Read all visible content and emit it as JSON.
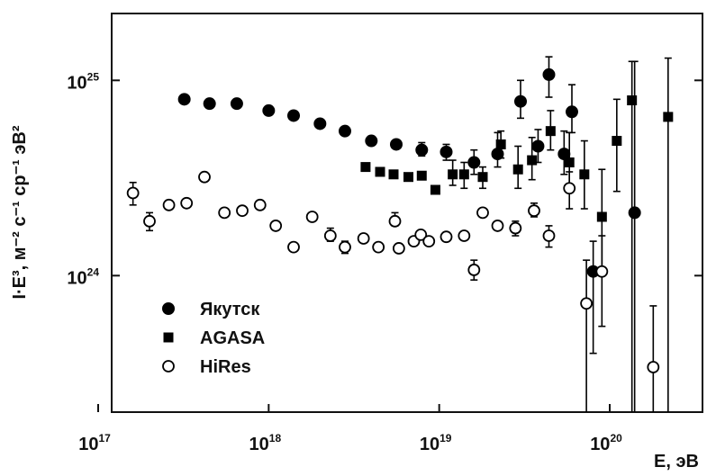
{
  "chart_data": {
    "type": "scatter",
    "xlabel": "E, эВ",
    "ylabel": "I·E³, м⁻² с⁻¹ ср⁻¹ эВ²",
    "x_scale": "log",
    "y_scale": "log",
    "xlim": [
      1.2e+17,
      3.5e+20
    ],
    "ylim": [
      2e+23,
      2.2e+25
    ],
    "x_ticks": [
      {
        "value": 1e+17,
        "base": "10",
        "exp": "17"
      },
      {
        "value": 1e+18,
        "base": "10",
        "exp": "18"
      },
      {
        "value": 1e+19,
        "base": "10",
        "exp": "19"
      },
      {
        "value": 1e+20,
        "base": "10",
        "exp": "20"
      }
    ],
    "y_ticks": [
      {
        "value": 1e+24,
        "base": "10",
        "exp": "24"
      },
      {
        "value": 1e+25,
        "base": "10",
        "exp": "25"
      }
    ],
    "legend_position": "bottom-left",
    "series": [
      {
        "name": "Якутск",
        "marker": "filled-circle",
        "color": "#000000",
        "points": [
          {
            "x": 3.2e+17,
            "y": 8e+24
          },
          {
            "x": 4.5e+17,
            "y": 7.6e+24
          },
          {
            "x": 6.5e+17,
            "y": 7.6e+24
          },
          {
            "x": 1e+18,
            "y": 7e+24
          },
          {
            "x": 1.4e+18,
            "y": 6.6e+24
          },
          {
            "x": 2e+18,
            "y": 6e+24
          },
          {
            "x": 2.8e+18,
            "y": 5.5e+24
          },
          {
            "x": 4e+18,
            "y": 4.9e+24
          },
          {
            "x": 5.6e+18,
            "y": 4.7e+24
          },
          {
            "x": 7.9e+18,
            "y": 4.4e+24,
            "yerr": [
              4.1e+24,
              4.8e+24
            ]
          },
          {
            "x": 1.1e+19,
            "y": 4.3e+24,
            "yerr": [
              3.9e+24,
              4.7e+24
            ]
          },
          {
            "x": 1.6e+19,
            "y": 3.8e+24,
            "yerr": [
              3.3e+24,
              4.4e+24
            ]
          },
          {
            "x": 2.2e+19,
            "y": 4.2e+24,
            "yerr": [
              3.6e+24,
              5.4e+24
            ]
          },
          {
            "x": 3e+19,
            "y": 7.8e+24,
            "yerr": [
              6.4e+24,
              1e+25
            ]
          },
          {
            "x": 3.8e+19,
            "y": 4.6e+24,
            "yerr": [
              3.8e+24,
              5.6e+24
            ]
          },
          {
            "x": 4.4e+19,
            "y": 1.07e+25,
            "yerr": [
              8.2e+24,
              1.32e+25
            ]
          },
          {
            "x": 5.4e+19,
            "y": 4.2e+24,
            "yerr": [
              3.3e+24,
              5.5e+24
            ]
          },
          {
            "x": 6e+19,
            "y": 6.9e+24,
            "yerr": [
              5.4e+24,
              9.5e+24
            ]
          },
          {
            "x": 8e+19,
            "y": 1.05e+24,
            "yerr": [
              4e+23,
              1.5e+24
            ]
          },
          {
            "x": 1.4e+20,
            "y": 2.1e+24,
            "yerr": [
              2e+23,
              1.25e+25
            ]
          }
        ]
      },
      {
        "name": "AGASA",
        "marker": "filled-square",
        "color": "#000000",
        "points": [
          {
            "x": 3.7e+18,
            "y": 3.6e+24
          },
          {
            "x": 4.5e+18,
            "y": 3.4e+24
          },
          {
            "x": 5.4e+18,
            "y": 3.3e+24
          },
          {
            "x": 6.6e+18,
            "y": 3.2e+24
          },
          {
            "x": 7.9e+18,
            "y": 3.25e+24
          },
          {
            "x": 9.5e+18,
            "y": 2.75e+24
          },
          {
            "x": 1.2e+19,
            "y": 3.3e+24,
            "yerr": [
              2.9e+24,
              3.9e+24
            ]
          },
          {
            "x": 1.4e+19,
            "y": 3.3e+24,
            "yerr": [
              2.8e+24,
              3.8e+24
            ]
          },
          {
            "x": 1.8e+19,
            "y": 3.2e+24,
            "yerr": [
              2.8e+24,
              3.6e+24
            ]
          },
          {
            "x": 2.3e+19,
            "y": 4.7e+24,
            "yerr": [
              4e+24,
              5.5e+24
            ]
          },
          {
            "x": 2.9e+19,
            "y": 3.5e+24,
            "yerr": [
              2.8e+24,
              4.6e+24
            ]
          },
          {
            "x": 3.5e+19,
            "y": 3.9e+24,
            "yerr": [
              3.1e+24,
              5.1e+24
            ]
          },
          {
            "x": 4.5e+19,
            "y": 5.5e+24,
            "yerr": [
              4.4e+24,
              7e+24
            ]
          },
          {
            "x": 5.8e+19,
            "y": 3.8e+24,
            "yerr": [
              2.8e+24,
              5.4e+24
            ]
          },
          {
            "x": 7.1e+19,
            "y": 3.3e+24,
            "yerr": [
              2.2e+24,
              4.9e+24
            ]
          },
          {
            "x": 9e+19,
            "y": 2e+24,
            "yerr": [
              1e+24,
              3.5e+24
            ]
          },
          {
            "x": 1.1e+20,
            "y": 4.9e+24,
            "yerr": [
              2.7e+24,
              8e+24
            ]
          },
          {
            "x": 1.35e+20,
            "y": 7.9e+24,
            "yerr": [
              2e+23,
              1.25e+25
            ]
          },
          {
            "x": 2.2e+20,
            "y": 6.5e+24,
            "yerr": [
              2e+23,
              1.3e+25
            ]
          }
        ]
      },
      {
        "name": "HiRes",
        "marker": "open-circle",
        "color": "#000000",
        "points": [
          {
            "x": 1.6e+17,
            "y": 2.65e+24,
            "yerr": [
              2.3e+24,
              3e+24
            ]
          },
          {
            "x": 2e+17,
            "y": 1.9e+24,
            "yerr": [
              1.7e+24,
              2.1e+24
            ]
          },
          {
            "x": 2.6e+17,
            "y": 2.3e+24
          },
          {
            "x": 3.3e+17,
            "y": 2.35e+24
          },
          {
            "x": 4.2e+17,
            "y": 3.2e+24
          },
          {
            "x": 5.5e+17,
            "y": 2.1e+24
          },
          {
            "x": 7e+17,
            "y": 2.15e+24
          },
          {
            "x": 8.9e+17,
            "y": 2.3e+24
          },
          {
            "x": 1.1e+18,
            "y": 1.8e+24
          },
          {
            "x": 1.4e+18,
            "y": 1.4e+24
          },
          {
            "x": 1.8e+18,
            "y": 2e+24
          },
          {
            "x": 2.3e+18,
            "y": 1.6e+24,
            "yerr": [
              1.5e+24,
              1.75e+24
            ]
          },
          {
            "x": 2.8e+18,
            "y": 1.4e+24,
            "yerr": [
              1.3e+24,
              1.5e+24
            ]
          },
          {
            "x": 3.6e+18,
            "y": 1.55e+24
          },
          {
            "x": 4.4e+18,
            "y": 1.4e+24
          },
          {
            "x": 5.5e+18,
            "y": 1.9e+24,
            "yerr": [
              1.8e+24,
              2.1e+24
            ]
          },
          {
            "x": 5.8e+18,
            "y": 1.38e+24
          },
          {
            "x": 7.1e+18,
            "y": 1.5e+24
          },
          {
            "x": 7.8e+18,
            "y": 1.62e+24
          },
          {
            "x": 8.7e+18,
            "y": 1.5e+24
          },
          {
            "x": 1.1e+19,
            "y": 1.58e+24
          },
          {
            "x": 1.4e+19,
            "y": 1.6e+24
          },
          {
            "x": 1.6e+19,
            "y": 1.07e+24,
            "yerr": [
              9.5e+23,
              1.2e+24
            ]
          },
          {
            "x": 1.8e+19,
            "y": 2.1e+24
          },
          {
            "x": 2.2e+19,
            "y": 1.8e+24
          },
          {
            "x": 2.8e+19,
            "y": 1.75e+24,
            "yerr": [
              1.6e+24,
              1.9e+24
            ]
          },
          {
            "x": 3.6e+19,
            "y": 2.15e+24,
            "yerr": [
              2e+24,
              2.35e+24
            ]
          },
          {
            "x": 4.4e+19,
            "y": 1.6e+24,
            "yerr": [
              1.4e+24,
              1.8e+24
            ]
          },
          {
            "x": 5.8e+19,
            "y": 2.8e+24,
            "yerr": [
              2.2e+24,
              3.4e+24
            ]
          },
          {
            "x": 7.3e+19,
            "y": 7.2e+23,
            "yerr": [
              2e+23,
              1.2e+24
            ]
          },
          {
            "x": 9e+19,
            "y": 1.05e+24,
            "yerr": [
              5.5e+23,
              1.6e+24
            ]
          },
          {
            "x": 1.8e+20,
            "y": 3.4e+23,
            "yerr": [
              2e+23,
              7e+23
            ]
          }
        ]
      }
    ]
  }
}
